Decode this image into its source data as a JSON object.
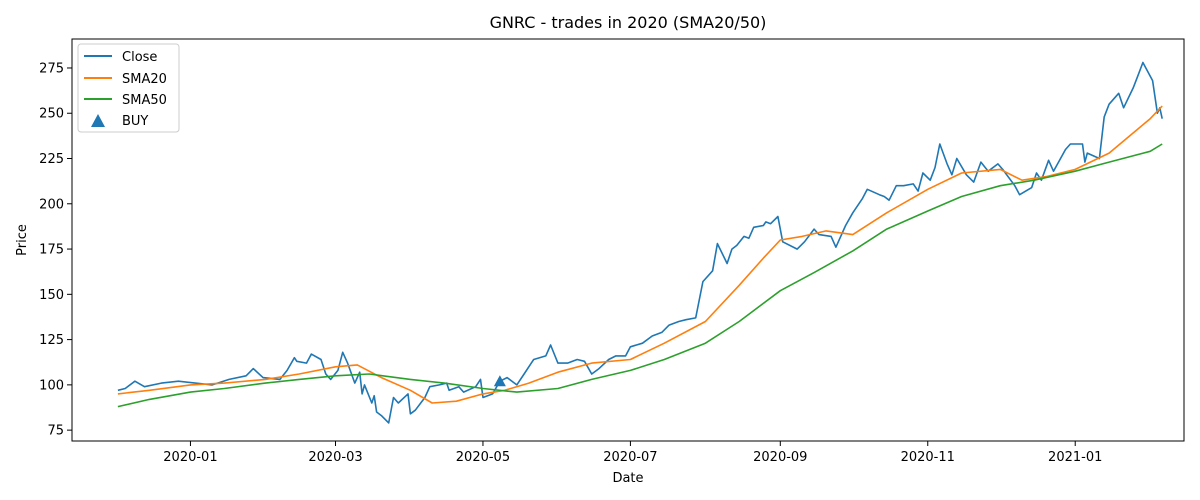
{
  "chart_data": {
    "type": "line",
    "title": "GNRC - trades in 2020 (SMA20/50)",
    "xlabel": "Date",
    "ylabel": "Price",
    "x_range": [
      "2019-11-13",
      "2021-02-15"
    ],
    "ylim": [
      69,
      291
    ],
    "grid": false,
    "legend_position": "top-left",
    "x_ticks": [
      {
        "date": "2020-01-01",
        "label": "2020-01"
      },
      {
        "date": "2020-03-01",
        "label": "2020-03"
      },
      {
        "date": "2020-05-01",
        "label": "2020-05"
      },
      {
        "date": "2020-07-01",
        "label": "2020-07"
      },
      {
        "date": "2020-09-01",
        "label": "2020-09"
      },
      {
        "date": "2020-11-01",
        "label": "2020-11"
      },
      {
        "date": "2021-01-01",
        "label": "2021-01"
      }
    ],
    "y_ticks": [
      75,
      100,
      125,
      150,
      175,
      200,
      225,
      250,
      275
    ],
    "series": [
      {
        "name": "Close",
        "color": "#1f77b4",
        "points": [
          [
            "2019-12-02",
            97
          ],
          [
            "2019-12-05",
            98
          ],
          [
            "2019-12-09",
            102
          ],
          [
            "2019-12-13",
            99
          ],
          [
            "2019-12-20",
            101
          ],
          [
            "2019-12-27",
            102
          ],
          [
            "2020-01-03",
            101
          ],
          [
            "2020-01-10",
            100
          ],
          [
            "2020-01-17",
            103
          ],
          [
            "2020-01-24",
            105
          ],
          [
            "2020-01-27",
            109
          ],
          [
            "2020-01-31",
            104
          ],
          [
            "2020-02-07",
            103
          ],
          [
            "2020-02-10",
            108
          ],
          [
            "2020-02-13",
            115
          ],
          [
            "2020-02-14",
            113
          ],
          [
            "2020-02-18",
            112
          ],
          [
            "2020-02-20",
            117
          ],
          [
            "2020-02-24",
            114
          ],
          [
            "2020-02-26",
            106
          ],
          [
            "2020-02-28",
            103
          ],
          [
            "2020-03-02",
            108
          ],
          [
            "2020-03-04",
            118
          ],
          [
            "2020-03-06",
            112
          ],
          [
            "2020-03-09",
            101
          ],
          [
            "2020-03-11",
            107
          ],
          [
            "2020-03-12",
            95
          ],
          [
            "2020-03-13",
            100
          ],
          [
            "2020-03-16",
            90
          ],
          [
            "2020-03-17",
            94
          ],
          [
            "2020-03-18",
            85
          ],
          [
            "2020-03-20",
            83
          ],
          [
            "2020-03-23",
            79
          ],
          [
            "2020-03-25",
            93
          ],
          [
            "2020-03-27",
            90
          ],
          [
            "2020-03-31",
            95
          ],
          [
            "2020-04-01",
            84
          ],
          [
            "2020-04-03",
            86
          ],
          [
            "2020-04-07",
            93
          ],
          [
            "2020-04-09",
            99
          ],
          [
            "2020-04-13",
            100
          ],
          [
            "2020-04-16",
            101
          ],
          [
            "2020-04-17",
            97
          ],
          [
            "2020-04-21",
            99
          ],
          [
            "2020-04-23",
            96
          ],
          [
            "2020-04-28",
            99
          ],
          [
            "2020-04-30",
            103
          ],
          [
            "2020-05-01",
            93
          ],
          [
            "2020-05-05",
            95
          ],
          [
            "2020-05-08",
            102
          ],
          [
            "2020-05-11",
            104
          ],
          [
            "2020-05-15",
            100
          ],
          [
            "2020-05-18",
            106
          ],
          [
            "2020-05-21",
            112
          ],
          [
            "2020-05-22",
            114
          ],
          [
            "2020-05-27",
            116
          ],
          [
            "2020-05-29",
            122
          ],
          [
            "2020-06-01",
            112
          ],
          [
            "2020-06-05",
            112
          ],
          [
            "2020-06-09",
            114
          ],
          [
            "2020-06-12",
            113
          ],
          [
            "2020-06-15",
            106
          ],
          [
            "2020-06-18",
            109
          ],
          [
            "2020-06-22",
            114
          ],
          [
            "2020-06-25",
            116
          ],
          [
            "2020-06-29",
            116
          ],
          [
            "2020-07-01",
            121
          ],
          [
            "2020-07-06",
            123
          ],
          [
            "2020-07-10",
            127
          ],
          [
            "2020-07-14",
            129
          ],
          [
            "2020-07-17",
            133
          ],
          [
            "2020-07-21",
            135
          ],
          [
            "2020-07-24",
            136
          ],
          [
            "2020-07-28",
            137
          ],
          [
            "2020-07-31",
            157
          ],
          [
            "2020-08-04",
            163
          ],
          [
            "2020-08-06",
            178
          ],
          [
            "2020-08-10",
            167
          ],
          [
            "2020-08-12",
            175
          ],
          [
            "2020-08-14",
            177
          ],
          [
            "2020-08-17",
            182
          ],
          [
            "2020-08-19",
            181
          ],
          [
            "2020-08-21",
            187
          ],
          [
            "2020-08-25",
            188
          ],
          [
            "2020-08-26",
            190
          ],
          [
            "2020-08-28",
            189
          ],
          [
            "2020-08-31",
            193
          ],
          [
            "2020-09-02",
            179
          ],
          [
            "2020-09-08",
            175
          ],
          [
            "2020-09-11",
            179
          ],
          [
            "2020-09-15",
            186
          ],
          [
            "2020-09-17",
            183
          ],
          [
            "2020-09-22",
            182
          ],
          [
            "2020-09-24",
            176
          ],
          [
            "2020-09-28",
            188
          ],
          [
            "2020-10-01",
            195
          ],
          [
            "2020-10-05",
            203
          ],
          [
            "2020-10-07",
            208
          ],
          [
            "2020-10-12",
            205
          ],
          [
            "2020-10-14",
            204
          ],
          [
            "2020-10-16",
            202
          ],
          [
            "2020-10-19",
            210
          ],
          [
            "2020-10-22",
            210
          ],
          [
            "2020-10-26",
            211
          ],
          [
            "2020-10-28",
            207
          ],
          [
            "2020-10-30",
            217
          ],
          [
            "2020-11-02",
            213
          ],
          [
            "2020-11-04",
            220
          ],
          [
            "2020-11-06",
            233
          ],
          [
            "2020-11-09",
            222
          ],
          [
            "2020-11-11",
            216
          ],
          [
            "2020-11-13",
            225
          ],
          [
            "2020-11-17",
            216
          ],
          [
            "2020-11-20",
            212
          ],
          [
            "2020-11-23",
            223
          ],
          [
            "2020-11-26",
            218
          ],
          [
            "2020-11-30",
            222
          ],
          [
            "2020-12-02",
            219
          ],
          [
            "2020-12-07",
            210
          ],
          [
            "2020-12-09",
            205
          ],
          [
            "2020-12-14",
            209
          ],
          [
            "2020-12-16",
            217
          ],
          [
            "2020-12-18",
            213
          ],
          [
            "2020-12-21",
            224
          ],
          [
            "2020-12-23",
            218
          ],
          [
            "2020-12-28",
            230
          ],
          [
            "2020-12-30",
            233
          ],
          [
            "2021-01-04",
            233
          ],
          [
            "2021-01-05",
            223
          ],
          [
            "2021-01-06",
            228
          ],
          [
            "2021-01-11",
            225
          ],
          [
            "2021-01-13",
            248
          ],
          [
            "2021-01-15",
            255
          ],
          [
            "2021-01-19",
            261
          ],
          [
            "2021-01-21",
            253
          ],
          [
            "2021-01-25",
            264
          ],
          [
            "2021-01-27",
            271
          ],
          [
            "2021-01-29",
            278
          ],
          [
            "2021-02-02",
            268
          ],
          [
            "2021-02-04",
            250
          ],
          [
            "2021-02-05",
            253
          ],
          [
            "2021-02-06",
            247
          ]
        ]
      },
      {
        "name": "SMA20",
        "color": "#ff7f0e",
        "points": [
          [
            "2019-12-02",
            95
          ],
          [
            "2019-12-15",
            97
          ],
          [
            "2020-01-01",
            100
          ],
          [
            "2020-01-15",
            101
          ],
          [
            "2020-02-01",
            103
          ],
          [
            "2020-02-15",
            106
          ],
          [
            "2020-03-01",
            110
          ],
          [
            "2020-03-10",
            111
          ],
          [
            "2020-03-20",
            104
          ],
          [
            "2020-04-01",
            97
          ],
          [
            "2020-04-10",
            90
          ],
          [
            "2020-04-20",
            91
          ],
          [
            "2020-05-01",
            95
          ],
          [
            "2020-05-10",
            97
          ],
          [
            "2020-05-20",
            101
          ],
          [
            "2020-06-01",
            107
          ],
          [
            "2020-06-15",
            112
          ],
          [
            "2020-07-01",
            114
          ],
          [
            "2020-07-15",
            123
          ],
          [
            "2020-08-01",
            135
          ],
          [
            "2020-08-15",
            155
          ],
          [
            "2020-08-25",
            170
          ],
          [
            "2020-09-01",
            180
          ],
          [
            "2020-09-10",
            182
          ],
          [
            "2020-09-20",
            185
          ],
          [
            "2020-10-01",
            183
          ],
          [
            "2020-10-15",
            195
          ],
          [
            "2020-11-01",
            208
          ],
          [
            "2020-11-15",
            217
          ],
          [
            "2020-12-01",
            219
          ],
          [
            "2020-12-10",
            213
          ],
          [
            "2020-12-20",
            215
          ],
          [
            "2021-01-01",
            219
          ],
          [
            "2021-01-15",
            228
          ],
          [
            "2021-02-01",
            247
          ],
          [
            "2021-02-06",
            254
          ]
        ]
      },
      {
        "name": "SMA50",
        "color": "#2ca02c",
        "points": [
          [
            "2019-12-02",
            88
          ],
          [
            "2019-12-15",
            92
          ],
          [
            "2020-01-01",
            96
          ],
          [
            "2020-01-15",
            98
          ],
          [
            "2020-02-01",
            101
          ],
          [
            "2020-02-15",
            103
          ],
          [
            "2020-03-01",
            105
          ],
          [
            "2020-03-15",
            106
          ],
          [
            "2020-04-01",
            103
          ],
          [
            "2020-04-15",
            101
          ],
          [
            "2020-05-01",
            98
          ],
          [
            "2020-05-15",
            96
          ],
          [
            "2020-06-01",
            98
          ],
          [
            "2020-06-15",
            103
          ],
          [
            "2020-07-01",
            108
          ],
          [
            "2020-07-15",
            114
          ],
          [
            "2020-08-01",
            123
          ],
          [
            "2020-08-15",
            135
          ],
          [
            "2020-09-01",
            152
          ],
          [
            "2020-09-15",
            162
          ],
          [
            "2020-10-01",
            174
          ],
          [
            "2020-10-15",
            186
          ],
          [
            "2020-11-01",
            196
          ],
          [
            "2020-11-15",
            204
          ],
          [
            "2020-12-01",
            210
          ],
          [
            "2020-12-15",
            213
          ],
          [
            "2021-01-01",
            218
          ],
          [
            "2021-01-15",
            223
          ],
          [
            "2021-02-01",
            229
          ],
          [
            "2021-02-06",
            233
          ]
        ]
      }
    ],
    "markers": [
      {
        "name": "BUY",
        "color": "#1f77b4",
        "shape": "triangle-up",
        "points": [
          [
            "2020-05-08",
            102
          ]
        ]
      }
    ]
  }
}
